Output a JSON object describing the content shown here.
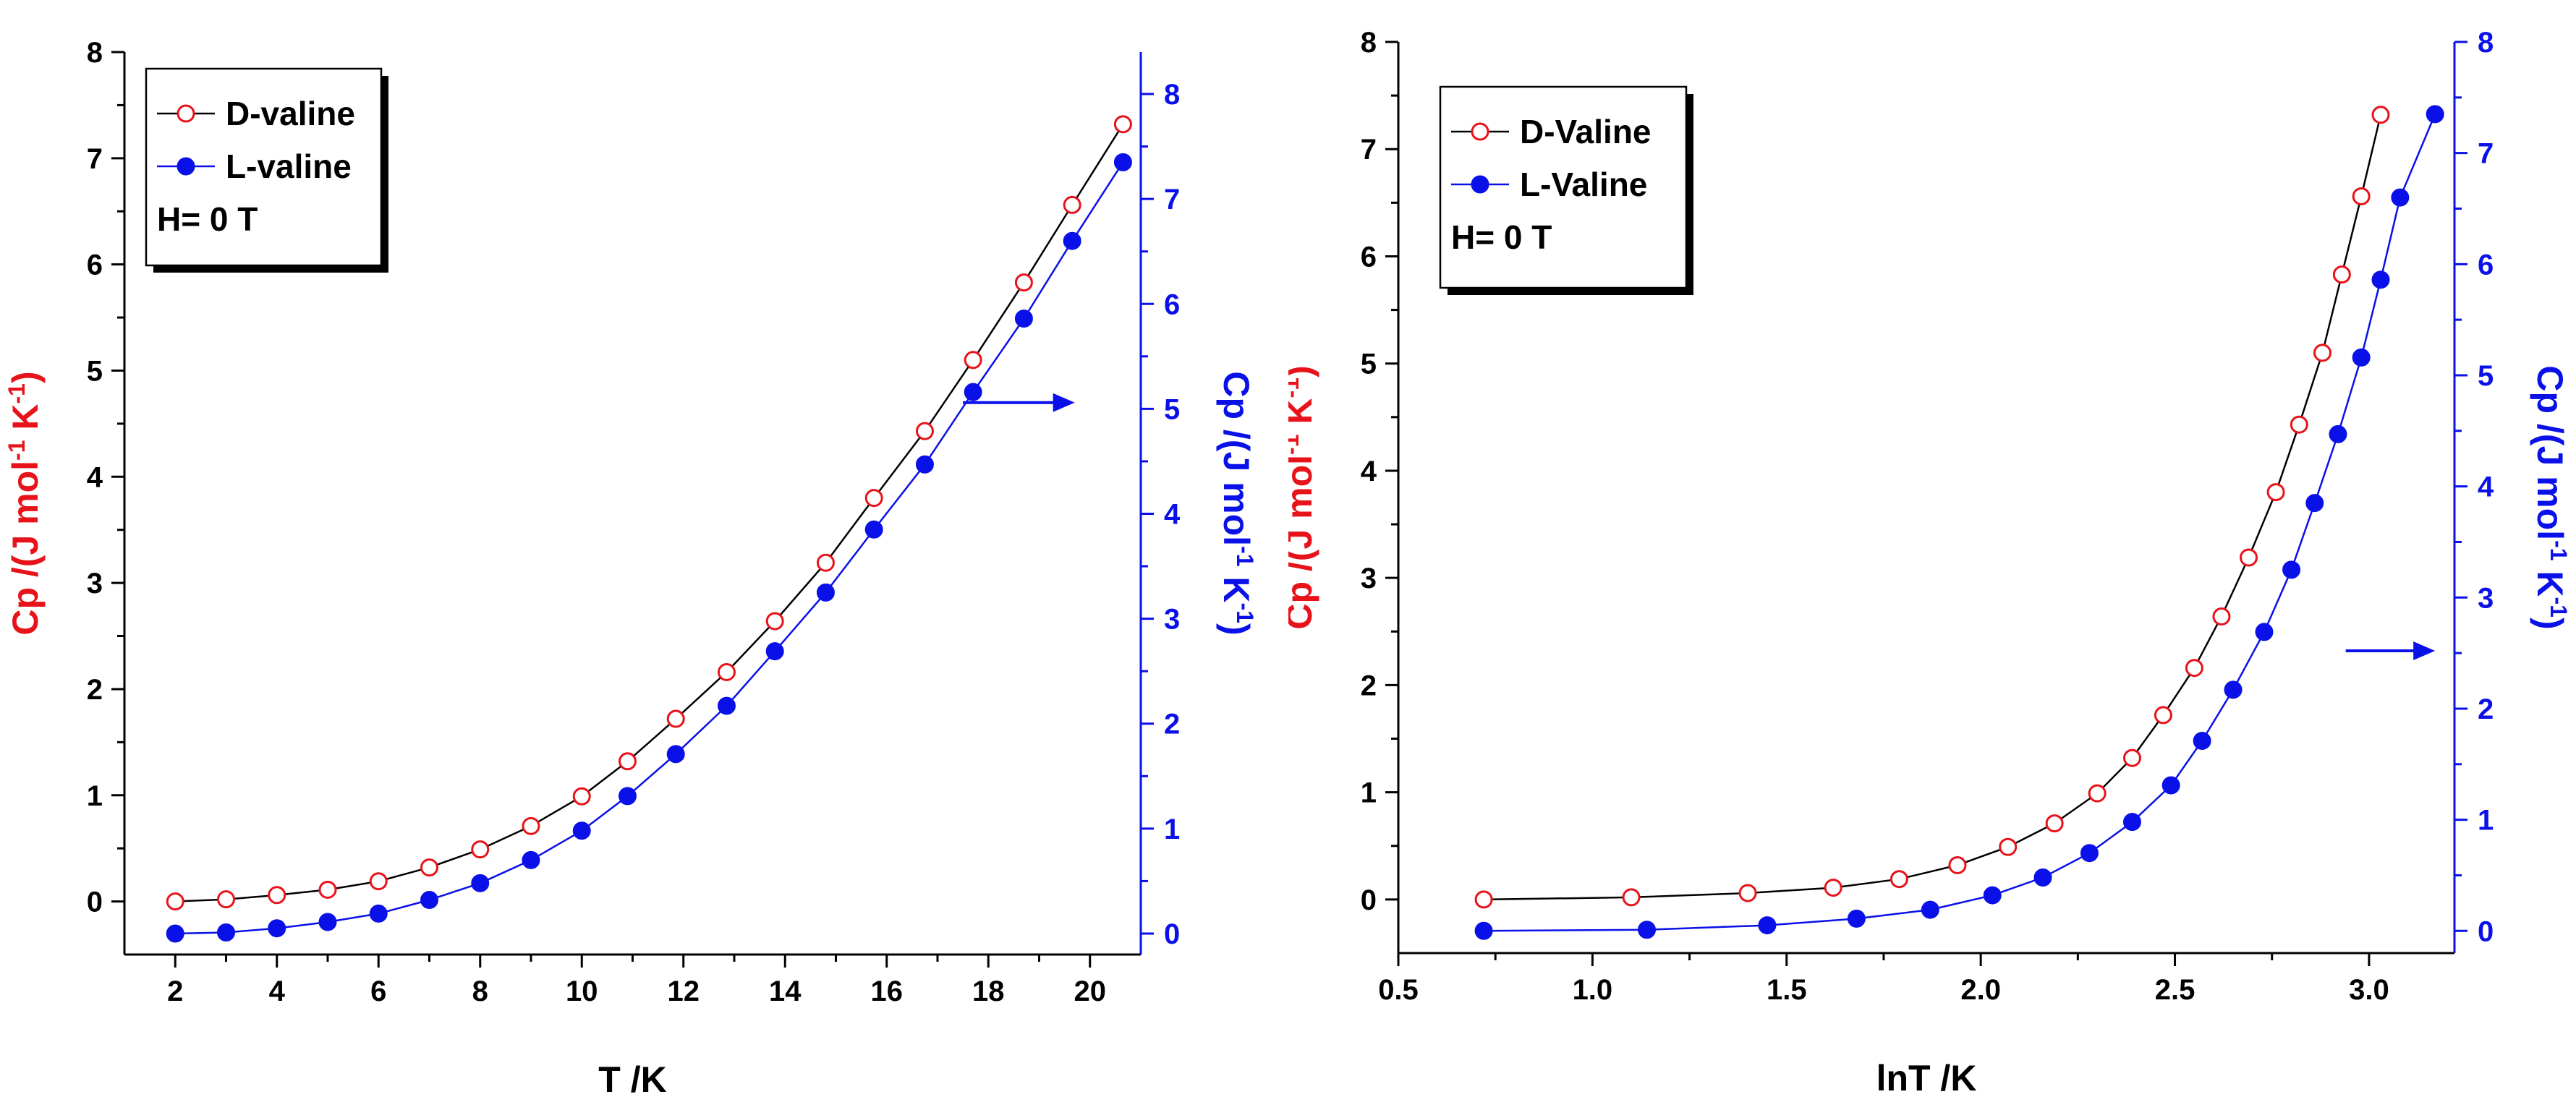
{
  "chart_data": [
    {
      "type": "line",
      "xlabel": "T /K",
      "ylabel_left": "Cp /(J mol^-1 K^-1)",
      "ylabel_right": "Cp /(J mol^-1 K^-1)",
      "ylabel_parts": {
        "main": "Cp /(J mol",
        "exp1": "-1",
        "mid": " K",
        "exp2": "-1",
        "end": ")"
      },
      "xlim": [
        1.0,
        21.0
      ],
      "ylim_left": [
        -0.5,
        8
      ],
      "ylim_right": [
        -0.2,
        8.4
      ],
      "x_ticks": [
        2,
        4,
        6,
        8,
        10,
        12,
        14,
        16,
        18,
        20
      ],
      "x_tick_labels": [
        "2",
        "4",
        "6",
        "8",
        "10",
        "12",
        "14",
        "16",
        "18",
        "20"
      ],
      "y_left_ticks": [
        0,
        1,
        2,
        3,
        4,
        5,
        6,
        7,
        8
      ],
      "y_left_tick_labels": [
        "0",
        "1",
        "2",
        "3",
        "4",
        "5",
        "6",
        "7",
        "8"
      ],
      "y_right_ticks": [
        0,
        1,
        2,
        3,
        4,
        5,
        6,
        7,
        8
      ],
      "y_right_tick_labels": [
        "0",
        "1",
        "2",
        "3",
        "4",
        "5",
        "6",
        "7",
        "8"
      ],
      "arrow": {
        "x_from": 17.5,
        "x_to": 19.7,
        "y_right": 5.06,
        "direction": "right"
      },
      "legend": {
        "position": "top-left",
        "entries": [
          {
            "label": "D-valine",
            "series": "D-valine"
          },
          {
            "label": "L-valine",
            "series": "L-valine"
          }
        ],
        "note": "H= 0 T"
      },
      "series": [
        {
          "name": "D-valine",
          "axis": "left",
          "marker": "open-circle",
          "x": [
            2.0,
            3.0,
            4.0,
            5.0,
            6.0,
            7.0,
            8.0,
            9.0,
            10.0,
            10.9,
            11.85,
            12.85,
            13.8,
            14.8,
            15.75,
            16.75,
            17.7,
            18.7,
            19.65,
            20.65
          ],
          "values": [
            0.0,
            0.02,
            0.06,
            0.11,
            0.19,
            0.32,
            0.49,
            0.71,
            0.99,
            1.32,
            1.72,
            2.16,
            2.64,
            3.19,
            3.8,
            4.43,
            5.1,
            5.83,
            6.56,
            7.32
          ]
        },
        {
          "name": "L-valine",
          "axis": "right",
          "marker": "filled-circle",
          "x": [
            2.0,
            3.0,
            4.0,
            5.0,
            6.0,
            7.0,
            8.0,
            9.0,
            10.0,
            10.9,
            11.85,
            12.85,
            13.8,
            14.8,
            15.75,
            16.75,
            17.7,
            18.7,
            19.65,
            20.65
          ],
          "values": [
            0.0,
            0.01,
            0.05,
            0.11,
            0.19,
            0.32,
            0.48,
            0.7,
            0.98,
            1.31,
            1.71,
            2.17,
            2.69,
            3.25,
            3.85,
            4.47,
            5.16,
            5.86,
            6.6,
            7.35
          ]
        }
      ]
    },
    {
      "type": "line",
      "xlabel": "lnT /K",
      "ylabel_left": "Cp /(J mol^-1 K^-1)",
      "ylabel_right": "Cp /(J mol^-1 K^-1)",
      "ylabel_parts": {
        "main": "Cp /(J mol",
        "exp1": "-1",
        "mid": " K",
        "exp2": "-1",
        "end": ")"
      },
      "xlim": [
        0.5,
        3.22
      ],
      "ylim_left": [
        -0.5,
        8
      ],
      "ylim_right": [
        -0.2,
        8.0
      ],
      "x_ticks": [
        0.5,
        1.0,
        1.5,
        2.0,
        2.5,
        3.0
      ],
      "x_tick_labels": [
        "0.5",
        "1.0",
        "1.5",
        "2.0",
        "2.5",
        "3.0"
      ],
      "y_left_ticks": [
        0,
        1,
        2,
        3,
        4,
        5,
        6,
        7,
        8
      ],
      "y_left_tick_labels": [
        "0",
        "1",
        "2",
        "3",
        "4",
        "5",
        "6",
        "7",
        "8"
      ],
      "y_right_ticks": [
        0,
        1,
        2,
        3,
        4,
        5,
        6,
        7,
        8
      ],
      "y_right_tick_labels": [
        "0",
        "1",
        "2",
        "3",
        "4",
        "5",
        "6",
        "7",
        "8"
      ],
      "arrow": {
        "x_from": 2.94,
        "x_to": 3.17,
        "y_right": 2.52,
        "direction": "right"
      },
      "legend": {
        "position": "top-left",
        "entries": [
          {
            "label": "D-Valine",
            "series": "D-valine"
          },
          {
            "label": "L-Valine",
            "series": "L-valine"
          }
        ],
        "note": "H= 0 T"
      },
      "series": [
        {
          "name": "D-valine",
          "axis": "left",
          "marker": "open-circle",
          "x": [
            0.72,
            1.1,
            1.4,
            1.62,
            1.79,
            1.94,
            2.07,
            2.19,
            2.3,
            2.39,
            2.47,
            2.55,
            2.62,
            2.69,
            2.76,
            2.82,
            2.88,
            2.93,
            2.98,
            3.03
          ],
          "values": [
            0.0,
            0.02,
            0.06,
            0.11,
            0.19,
            0.32,
            0.49,
            0.71,
            0.99,
            1.32,
            1.72,
            2.16,
            2.64,
            3.19,
            3.8,
            4.43,
            5.1,
            5.83,
            6.56,
            7.32
          ]
        },
        {
          "name": "L-valine",
          "axis": "right",
          "marker": "filled-circle",
          "x": [
            0.72,
            1.14,
            1.45,
            1.68,
            1.87,
            2.03,
            2.16,
            2.28,
            2.39,
            2.49,
            2.57,
            2.65,
            2.73,
            2.8,
            2.86,
            2.92,
            2.98,
            3.03,
            3.08,
            3.17
          ],
          "values": [
            0.0,
            0.01,
            0.05,
            0.11,
            0.19,
            0.32,
            0.48,
            0.7,
            0.98,
            1.31,
            1.71,
            2.17,
            2.69,
            3.25,
            3.85,
            4.47,
            5.16,
            5.86,
            6.6,
            7.35
          ]
        }
      ]
    }
  ],
  "colors": {
    "d_series": "#e8131a",
    "l_series": "#0a10e8",
    "axis": "#000000"
  }
}
